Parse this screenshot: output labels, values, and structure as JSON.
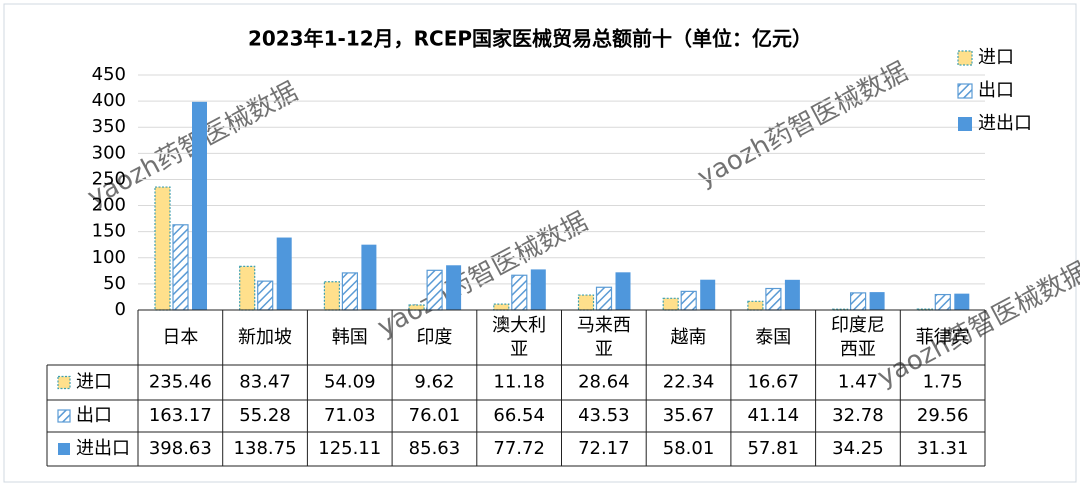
{
  "chart_data": {
    "type": "bar",
    "title": "2023年1-12月，RCEP国家医械贸易总额前十（单位：亿元）",
    "watermark": "yaozh药智医械数据",
    "categories": [
      "日本",
      "新加坡",
      "韩国",
      "印度",
      "澳大利亚",
      "马来西亚",
      "越南",
      "泰国",
      "印度尼西亚",
      "菲律宾"
    ],
    "series": [
      {
        "name": "进口",
        "color": "#ffe08c",
        "values": [
          235.46,
          83.47,
          54.09,
          9.62,
          11.18,
          28.64,
          22.34,
          16.67,
          1.47,
          1.75
        ]
      },
      {
        "name": "出口",
        "color": "#5b9bd5",
        "values": [
          163.17,
          55.28,
          71.03,
          76.01,
          66.54,
          43.53,
          35.67,
          41.14,
          32.78,
          29.56
        ]
      },
      {
        "name": "进出口",
        "color": "#4f97dc",
        "values": [
          398.63,
          138.75,
          125.11,
          85.63,
          77.72,
          72.17,
          58.01,
          57.81,
          34.25,
          31.31
        ]
      }
    ],
    "ylim": [
      0,
      450
    ],
    "yticks": [
      0,
      50,
      100,
      150,
      200,
      250,
      300,
      350,
      400,
      450
    ],
    "grid": true,
    "legend": "top-right"
  }
}
